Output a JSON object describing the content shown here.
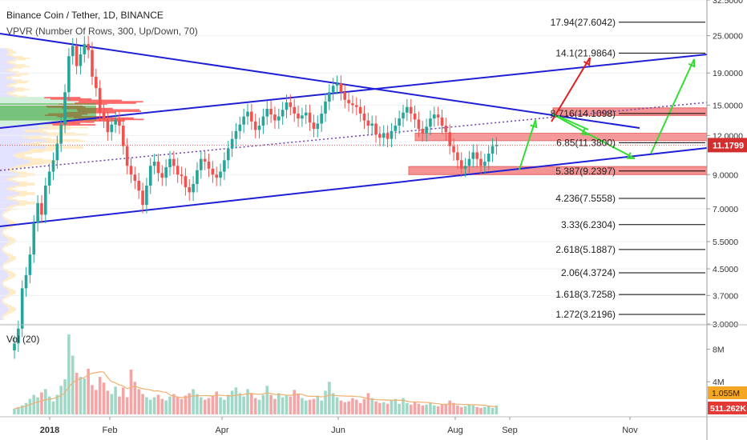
{
  "header": {
    "title": "Binance Coin / Tether, 1D, BINANCE",
    "indicator": "VPVR (Number Of Rows, 300, Up/Down, 70)"
  },
  "volume_panel": {
    "title": "Vol (20)"
  },
  "colors": {
    "up": "#26a69a",
    "down": "#ef5350",
    "trend": "#1f1fd6",
    "fib_box": "#f07070",
    "arrow_red": "#e02020",
    "arrow_green": "#33dd33",
    "price_label": "#f5a623",
    "vol_up": "#9fd8c6",
    "vol_down": "#f4a6a6",
    "vol_ma": "#f0b070"
  },
  "chart_data": [
    {
      "type": "candlestick",
      "title": "Binance Coin / Tether, 1D, BINANCE",
      "y_scale": "log",
      "x_ticks": [
        "2018",
        "Feb",
        "Apr",
        "Jun",
        "Aug",
        "Sep",
        "Nov"
      ],
      "y_ticks": [
        "32.5000",
        "25.0000",
        "19.0000",
        "15.0000",
        "12.0000",
        "9.0000",
        "7.0000",
        "5.5000",
        "4.5000",
        "3.7000",
        "3.0000"
      ],
      "last_price": "11.1799",
      "fib_levels": [
        {
          "label": "17.94(27.6042)",
          "value": 27.6042
        },
        {
          "label": "14.1(21.9864)",
          "value": 21.9864
        },
        {
          "label": "8.716(14.1098)",
          "value": 14.1098
        },
        {
          "label": "6.85(11.3800)",
          "value": 11.38
        },
        {
          "label": "5.387(9.2397)",
          "value": 9.2397
        },
        {
          "label": "4.236(7.5558)",
          "value": 7.5558
        },
        {
          "label": "3.33(6.2304)",
          "value": 6.2304
        },
        {
          "label": "2.618(5.1887)",
          "value": 5.1887
        },
        {
          "label": "2.06(4.3724)",
          "value": 4.3724
        },
        {
          "label": "1.618(3.7258)",
          "value": 3.7258
        },
        {
          "label": "1.272(3.2196)",
          "value": 3.2196
        }
      ],
      "series_close": [
        2.6,
        2.9,
        3.9,
        4.3,
        5.0,
        6.3,
        7.3,
        6.7,
        8.3,
        9.2,
        10.0,
        11.3,
        13.0,
        16.5,
        21.5,
        23.2,
        20.0,
        21.8,
        23.5,
        22.5,
        18.5,
        17.0,
        14.2,
        13.5,
        12.3,
        13.0,
        13.5,
        12.9,
        11.1,
        9.6,
        9.0,
        8.6,
        8.0,
        7.2,
        8.3,
        9.6,
        9.9,
        9.1,
        8.8,
        9.5,
        10.1,
        9.6,
        9.0,
        8.9,
        8.2,
        7.9,
        8.4,
        9.3,
        10.1,
        9.9,
        9.4,
        9.0,
        8.8,
        9.2,
        10.0,
        10.9,
        11.7,
        12.4,
        13.0,
        13.8,
        14.3,
        13.3,
        12.5,
        12.9,
        13.8,
        14.6,
        14.0,
        13.4,
        13.8,
        14.5,
        15.3,
        14.8,
        14.1,
        13.6,
        13.9,
        14.2,
        13.2,
        12.6,
        13.1,
        14.1,
        15.4,
        16.5,
        17.3,
        17.6,
        16.5,
        15.6,
        15.2,
        15.0,
        14.8,
        14.1,
        13.4,
        12.9,
        13.1,
        12.1,
        11.8,
        12.2,
        11.7,
        12.4,
        12.9,
        13.6,
        14.2,
        14.8,
        14.1,
        13.5,
        12.6,
        12.2,
        12.8,
        13.6,
        14.0,
        13.7,
        12.9,
        12.3,
        11.1,
        10.6,
        10.0,
        9.4,
        9.6,
        10.1,
        10.6,
        10.1,
        9.6,
        9.9,
        10.5,
        11.1,
        11.2
      ],
      "volume": [
        0.7,
        0.9,
        1.1,
        1.4,
        1.9,
        2.4,
        2.1,
        2.7,
        3.1,
        2.2,
        1.6,
        2.4,
        3.5,
        4.3,
        9.8,
        7.2,
        5.1,
        4.6,
        4.4,
        5.6,
        3.6,
        3.0,
        4.6,
        3.9,
        2.9,
        2.5,
        3.4,
        2.2,
        3.3,
        2.1,
        5.5,
        4.0,
        3.1,
        2.5,
        2.1,
        1.8,
        2.1,
        2.4,
        1.9,
        1.7,
        2.2,
        2.5,
        2.1,
        1.9,
        2.3,
        2.6,
        3.1,
        2.5,
        2.1,
        1.8,
        2.0,
        2.3,
        2.8,
        2.1,
        1.8,
        2.4,
        2.9,
        3.3,
        2.6,
        2.2,
        3.1,
        2.5,
        2.0,
        1.8,
        2.4,
        3.5,
        2.4,
        1.9,
        2.6,
        2.1,
        2.4,
        2.2,
        3.0,
        2.5,
        2.0,
        1.7,
        1.8,
        1.9,
        2.3,
        1.7,
        2.9,
        4.0,
        2.6,
        2.1,
        1.7,
        1.5,
        1.6,
        2.0,
        1.8,
        1.4,
        1.9,
        2.6,
        2.0,
        1.6,
        1.4,
        1.5,
        1.3,
        1.8,
        1.9,
        1.3,
        2.0,
        1.4,
        1.2,
        1.5,
        1.3,
        1.1,
        1.2,
        1.4,
        1.1,
        1.0,
        1.2,
        1.3,
        1.7,
        1.4,
        1.1,
        0.9,
        1.0,
        1.2,
        1.1,
        0.9,
        0.8,
        0.9,
        1.0,
        0.8,
        1.1
      ],
      "volume_ticks": [
        "8M",
        "4M"
      ],
      "volume_labels": [
        "1.055M",
        "511.262K"
      ]
    }
  ]
}
